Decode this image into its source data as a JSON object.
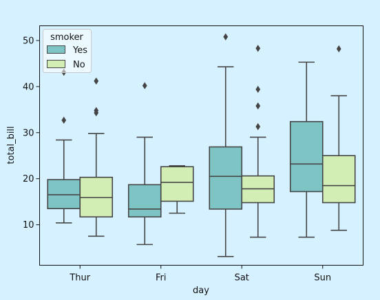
{
  "chart_data": {
    "type": "box",
    "xlabel": "day",
    "ylabel": "total_bill",
    "categories": [
      "Thur",
      "Fri",
      "Sat",
      "Sun"
    ],
    "ylim": [
      1.2,
      53.2
    ],
    "yticks": [
      10,
      20,
      30,
      40,
      50
    ],
    "grid": false,
    "legend": {
      "title": "smoker",
      "placement": "top-left"
    },
    "series": [
      {
        "name": "Yes",
        "color": "#7fc4c4",
        "boxes": [
          {
            "whislo": 10.4,
            "q1": 13.5,
            "med": 16.5,
            "q3": 19.8,
            "whishi": 28.4,
            "fliers": [
              32.7,
              43.1
            ]
          },
          {
            "whislo": 5.7,
            "q1": 11.7,
            "med": 13.4,
            "q3": 18.7,
            "whishi": 29.0,
            "fliers": [
              40.2
            ]
          },
          {
            "whislo": 3.1,
            "q1": 13.4,
            "med": 20.5,
            "q3": 26.9,
            "whishi": 44.3,
            "fliers": [
              50.8
            ]
          },
          {
            "whislo": 7.3,
            "q1": 17.2,
            "med": 23.2,
            "q3": 32.4,
            "whishi": 45.3,
            "fliers": []
          }
        ]
      },
      {
        "name": "No",
        "color": "#d3eeb4",
        "boxes": [
          {
            "whislo": 7.5,
            "q1": 11.7,
            "med": 15.9,
            "q3": 20.3,
            "whishi": 29.8,
            "fliers": [
              34.3,
              34.8,
              41.2
            ]
          },
          {
            "whislo": 12.5,
            "q1": 15.1,
            "med": 19.2,
            "q3": 22.6,
            "whishi": 22.8,
            "fliers": []
          },
          {
            "whislo": 7.3,
            "q1": 14.8,
            "med": 17.8,
            "q3": 20.6,
            "whishi": 29.0,
            "fliers": [
              31.3,
              35.8,
              39.4,
              48.3
            ]
          },
          {
            "whislo": 8.8,
            "q1": 14.8,
            "med": 18.5,
            "q3": 25.0,
            "whishi": 38.0,
            "fliers": [
              48.2
            ]
          }
        ]
      }
    ],
    "style": {
      "edge": "#454545",
      "background": "#d6f1ff",
      "legend_bg": "#ffffff"
    }
  }
}
